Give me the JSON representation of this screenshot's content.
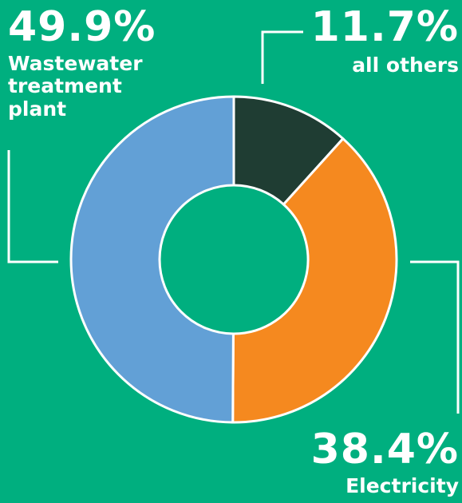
{
  "chart_data": {
    "type": "pie",
    "style": "donut",
    "start": "12 o'clock",
    "direction": "clockwise",
    "slices": [
      {
        "label": "all others",
        "value": 11.7,
        "value_label": "11.7%",
        "color": "#1F3D33"
      },
      {
        "label": "Electricity",
        "value": 38.4,
        "value_label": "38.4%",
        "color": "#F5891F"
      },
      {
        "label": "Wastewater treatment plant",
        "value": 49.9,
        "value_label": "49.9%",
        "color": "#62A0D6"
      }
    ],
    "background": "#00AF7F",
    "separator_color": "#FFFFFF",
    "leader_line_color": "#FFFFFF"
  }
}
